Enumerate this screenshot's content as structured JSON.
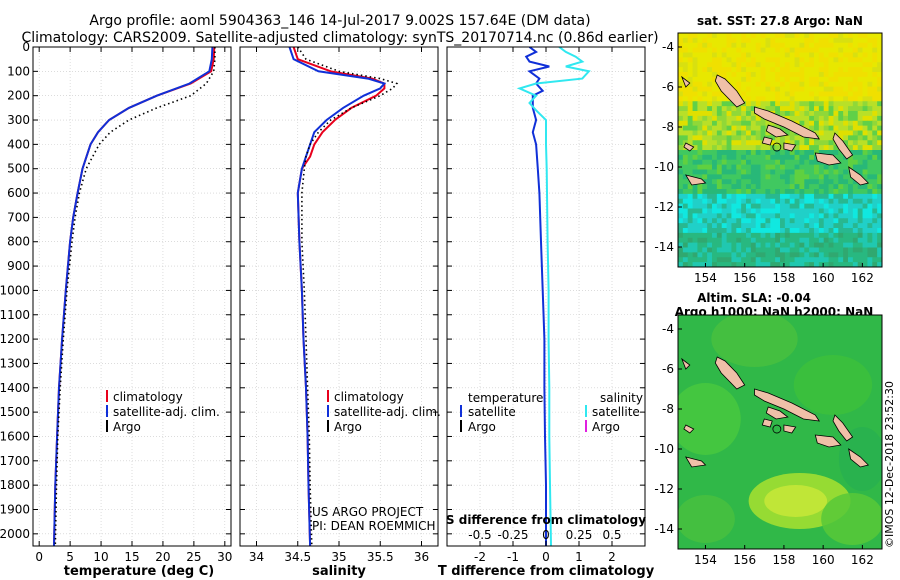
{
  "header": {
    "line1": "Argo profile: aoml 5904363_146 14-Jul-2017 9.002S 157.64E (DM data)",
    "line2": "Climatology: CARS2009. Satellite-adjusted climatology: synTS_20170714.nc (0.86d earlier)"
  },
  "credit": {
    "project": "US ARGO PROJECT",
    "pi": "PI: DEAN ROEMMICH",
    "stamp": "©IMOS 12-Dec-2018 23:52:30"
  },
  "colors": {
    "climatology": "#e8001c",
    "satellite": "#1030d8",
    "argo": "#000000",
    "sat_salinity": "#30e8f0",
    "argo_salinity": "#e020e0",
    "land": "#f0c0a8"
  },
  "chart_data": [
    {
      "type": "line",
      "id": "temperature",
      "xlabel": "temperature (deg C)",
      "xlim": [
        -1,
        31
      ],
      "xticks": [
        0,
        5,
        10,
        15,
        20,
        25,
        30
      ],
      "ylim": [
        0,
        2050
      ],
      "yticks": [
        0,
        100,
        200,
        300,
        400,
        500,
        600,
        700,
        800,
        900,
        1000,
        1100,
        1200,
        1300,
        1400,
        1500,
        1600,
        1700,
        1800,
        1900,
        2000
      ],
      "depth": [
        0,
        50,
        100,
        150,
        200,
        250,
        300,
        350,
        400,
        500,
        600,
        700,
        800,
        1000,
        1200,
        1400,
        1600,
        1800,
        2050
      ],
      "legend": {
        "labels": [
          "climatology",
          "satellite-adj. clim.",
          "Argo"
        ]
      },
      "series": [
        {
          "name": "climatology",
          "style": "solid",
          "color_key": "climatology",
          "values": [
            28.3,
            28.2,
            27.8,
            24.5,
            19.0,
            14.5,
            11.3,
            9.5,
            8.3,
            7.0,
            6.2,
            5.5,
            5.0,
            4.3,
            3.7,
            3.2,
            2.9,
            2.6,
            2.4
          ]
        },
        {
          "name": "satellite-adj. clim.",
          "style": "solid",
          "color_key": "satellite",
          "values": [
            28.0,
            27.9,
            27.5,
            24.3,
            19.0,
            14.5,
            11.3,
            9.5,
            8.3,
            7.0,
            6.2,
            5.5,
            5.0,
            4.3,
            3.7,
            3.2,
            2.9,
            2.6,
            2.4
          ]
        },
        {
          "name": "Argo",
          "style": "dotted",
          "color_key": "argo",
          "values": [
            28.4,
            28.4,
            28.2,
            27.0,
            24.5,
            19.0,
            14.5,
            11.5,
            9.7,
            7.6,
            6.5,
            5.8,
            5.3,
            4.5,
            3.9,
            3.4,
            3.0,
            2.8,
            2.6
          ]
        }
      ]
    },
    {
      "type": "line",
      "id": "salinity",
      "xlabel": "salinity",
      "xlim": [
        33.8,
        36.2
      ],
      "xticks": [
        34,
        34.5,
        35,
        35.5,
        36
      ],
      "ylim": [
        0,
        2050
      ],
      "depth": [
        0,
        50,
        100,
        130,
        150,
        170,
        200,
        250,
        300,
        350,
        400,
        450,
        500,
        600,
        800,
        1000,
        1200,
        1400,
        1600,
        1800,
        2050
      ],
      "legend": {
        "labels": [
          "climatology",
          "satellite-adj. clim.",
          "Argo"
        ]
      },
      "series": [
        {
          "name": "climatology",
          "style": "solid",
          "color_key": "climatology",
          "values": [
            34.45,
            34.5,
            34.9,
            35.4,
            35.55,
            35.55,
            35.45,
            35.15,
            34.95,
            34.8,
            34.7,
            34.65,
            34.55,
            34.5,
            34.52,
            34.55,
            34.57,
            34.6,
            34.62,
            34.63,
            34.65
          ]
        },
        {
          "name": "satellite-adj. clim.",
          "style": "solid",
          "color_key": "satellite",
          "values": [
            34.4,
            34.45,
            34.75,
            35.35,
            35.55,
            35.5,
            35.3,
            35.05,
            34.85,
            34.7,
            34.65,
            34.6,
            34.55,
            34.5,
            34.52,
            34.55,
            34.57,
            34.6,
            34.62,
            34.63,
            34.65
          ]
        },
        {
          "name": "Argo",
          "style": "dotted",
          "color_key": "argo",
          "values": [
            34.5,
            34.6,
            35.0,
            35.5,
            35.7,
            35.65,
            35.5,
            35.15,
            34.9,
            34.75,
            34.65,
            34.6,
            34.58,
            34.55,
            34.55,
            34.58,
            34.6,
            34.62,
            34.64,
            34.65,
            34.67
          ]
        }
      ]
    },
    {
      "type": "line",
      "id": "difference",
      "xlabel": "T difference from climatology",
      "xlabel_top": "S difference from climatology",
      "xlim": [
        -3,
        3
      ],
      "xticks": [
        -2,
        -1,
        0,
        1,
        2
      ],
      "xticks_labels": [
        "-2",
        "-1",
        "0",
        "1",
        "2"
      ],
      "top_ticks": [
        -2,
        -1,
        0,
        1,
        2
      ],
      "top_tick_labels": [
        "-0.5",
        "-0.25",
        "0",
        "0.25",
        "0.5"
      ],
      "ylim": [
        0,
        2050
      ],
      "depth_t": [
        0,
        20,
        40,
        60,
        80,
        100,
        130,
        150,
        180,
        200,
        250,
        300,
        350,
        400,
        500,
        600,
        800,
        1000,
        1200,
        1400,
        1600,
        1800,
        2050
      ],
      "depth_s": [
        0,
        20,
        40,
        60,
        80,
        100,
        130,
        150,
        170,
        200,
        230,
        260,
        300,
        350,
        400,
        500,
        600,
        800,
        1000,
        1200,
        1400,
        1600,
        1800,
        2050
      ],
      "legend": {
        "temperature_title": "temperature",
        "salinity_title": "salinity",
        "labels": [
          "satellite",
          "Argo",
          "satellite",
          "Argo"
        ]
      },
      "series": [
        {
          "name": "temperature satellite",
          "style": "solid",
          "color_key": "satellite",
          "values": [
            -0.5,
            -0.3,
            -0.6,
            -0.5,
            0.1,
            -0.5,
            -0.2,
            -0.3,
            -0.1,
            -0.4,
            -0.4,
            -0.3,
            -0.4,
            -0.3,
            -0.25,
            -0.2,
            -0.15,
            -0.1,
            -0.05,
            -0.05,
            -0.03,
            0.0,
            0.0
          ]
        },
        {
          "name": "salinity satellite",
          "style": "solid",
          "color_key": "sat_salinity",
          "values": [
            0.4,
            0.6,
            0.9,
            1.1,
            0.6,
            1.3,
            1.1,
            -0.3,
            -0.8,
            -0.3,
            -0.5,
            -0.3,
            0.0,
            0.0,
            0.0,
            0.02,
            0.03,
            0.05,
            0.08,
            0.08,
            0.1,
            0.1,
            0.12,
            0.15
          ]
        }
      ]
    },
    {
      "type": "heatmap",
      "id": "sst-map",
      "title": "sat. SST: 27.8 Argo: NaN",
      "xlim": [
        152.6,
        163
      ],
      "ylim": [
        -15,
        -3.3
      ],
      "xticks": [
        154,
        156,
        158,
        160,
        162
      ],
      "yticks": [
        -4,
        -6,
        -8,
        -10,
        -12,
        -14
      ],
      "profile_location": [
        157.64,
        -9.002
      ]
    },
    {
      "type": "heatmap",
      "id": "sla-map",
      "title": "Altim. SLA: -0.04",
      "subtitle": "Argo h1000: NaN h2000: NaN",
      "xlim": [
        152.6,
        163
      ],
      "ylim": [
        -15,
        -3.3
      ],
      "xticks": [
        154,
        156,
        158,
        160,
        162
      ],
      "yticks": [
        -4,
        -6,
        -8,
        -10,
        -12,
        -14
      ],
      "profile_location": [
        157.64,
        -9.002
      ]
    }
  ]
}
